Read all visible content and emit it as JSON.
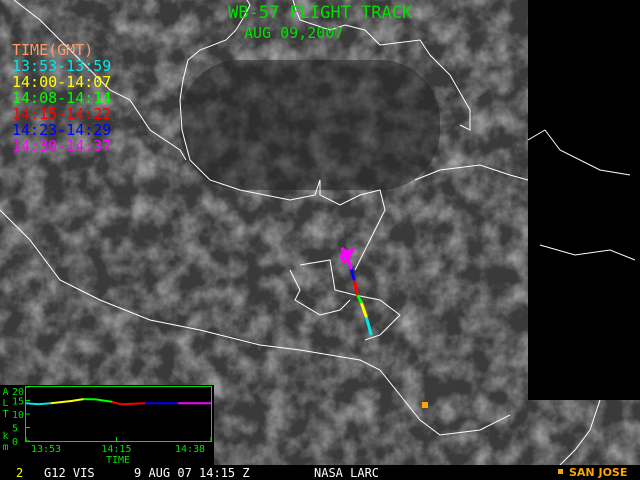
{
  "title": "WB-57 FLIGHT TRACK",
  "date": "AUG 09,2007",
  "legend": {
    "header": "TIME(GMT)",
    "header_color": "#ff9966",
    "items": [
      {
        "label": "13:53-13:59",
        "color": "#00e8e8"
      },
      {
        "label": "14:00-14:07",
        "color": "#ffff00"
      },
      {
        "label": "14:08-14:14",
        "color": "#00ff00"
      },
      {
        "label": "14:15-14:22",
        "color": "#ff0000"
      },
      {
        "label": "14:23-14:29",
        "color": "#0000ff"
      },
      {
        "label": "14:30-14:37",
        "color": "#ff00ff"
      }
    ]
  },
  "chart_data": {
    "type": "line",
    "ylabel": "ALT km",
    "ylabel_letters": [
      "A",
      "L",
      "T",
      "k",
      "m"
    ],
    "yticks": [
      "20",
      "15",
      "10",
      "5",
      "0"
    ],
    "ylim": [
      0,
      20
    ],
    "xlabel": "TIME",
    "xticks": [
      "13:53",
      "14:15",
      "14:38"
    ],
    "series": [
      {
        "color": "#00e8e8",
        "points": [
          [
            "13:53",
            14
          ],
          [
            "13:56",
            13.6
          ],
          [
            "13:59",
            14
          ]
        ]
      },
      {
        "color": "#ffff00",
        "points": [
          [
            "13:59",
            14
          ],
          [
            "14:04",
            14.8
          ],
          [
            "14:07",
            15.5
          ]
        ]
      },
      {
        "color": "#00ff00",
        "points": [
          [
            "14:07",
            15.5
          ],
          [
            "14:10",
            15.4
          ],
          [
            "14:14",
            14.5
          ]
        ]
      },
      {
        "color": "#ff0000",
        "points": [
          [
            "14:14",
            14.5
          ],
          [
            "14:16",
            13.6
          ],
          [
            "14:22",
            14
          ]
        ]
      },
      {
        "color": "#0000ff",
        "points": [
          [
            "14:22",
            14
          ],
          [
            "14:30",
            14
          ]
        ]
      },
      {
        "color": "#ff00ff",
        "points": [
          [
            "14:30",
            14
          ],
          [
            "14:38",
            14
          ]
        ]
      }
    ]
  },
  "marker": {
    "label": "SAN JOSE",
    "color": "#ffa500"
  },
  "footer": {
    "frame": "2",
    "sensor": "G12 VIS",
    "datetime": "9 AUG 07 14:15 Z",
    "source": "NASA LARC"
  }
}
